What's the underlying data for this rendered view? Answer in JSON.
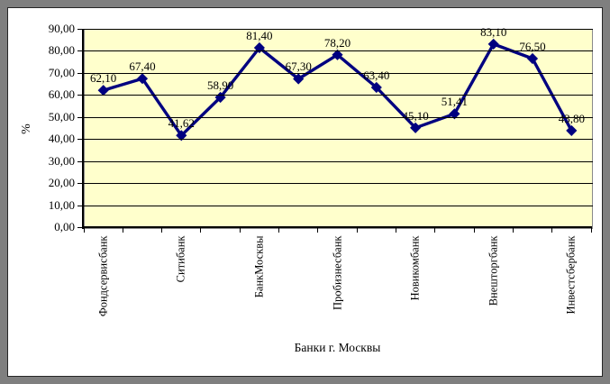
{
  "window": {
    "frame_color": "#7f7f7f",
    "panel_background": "#ffffff"
  },
  "chart_data": {
    "type": "line",
    "title": "",
    "xlabel": "Банки г. Москвы",
    "ylabel": "%",
    "ylim": [
      0,
      90
    ],
    "ytick_step": 10,
    "y_tick_labels": [
      "90,00",
      "80,00",
      "70,00",
      "60,00",
      "50,00",
      "40,00",
      "30,00",
      "20,00",
      "10,00",
      "0,00"
    ],
    "n_points": 13,
    "categories": [
      "Фондсервисбанк",
      "Ситибанк",
      "БанкМосквы",
      "Пробизнесбанк",
      "Новикомбанк",
      "Внешторгбанк",
      "Инвестсбербанк"
    ],
    "category_label_every": 2,
    "series": [
      {
        "values": [
          62.1,
          67.4,
          41.62,
          58.9,
          81.4,
          67.3,
          78.2,
          63.4,
          45.1,
          51.41,
          83.1,
          76.5,
          43.8
        ]
      }
    ],
    "point_labels": [
      "62,10",
      "67,40",
      "41,62",
      "58,90",
      "81,40",
      "67,30",
      "78,20",
      "63,40",
      "45,10",
      "51,41",
      "83,10",
      "76,50",
      "43,80"
    ],
    "grid": true,
    "legend": "none",
    "colors": {
      "line": "#000080",
      "marker": "#000080",
      "plot_bg": "#ffffcc",
      "gridline": "#000000",
      "axis": "#000000",
      "text": "#000000",
      "plot_border": "#8a8a8a"
    }
  }
}
